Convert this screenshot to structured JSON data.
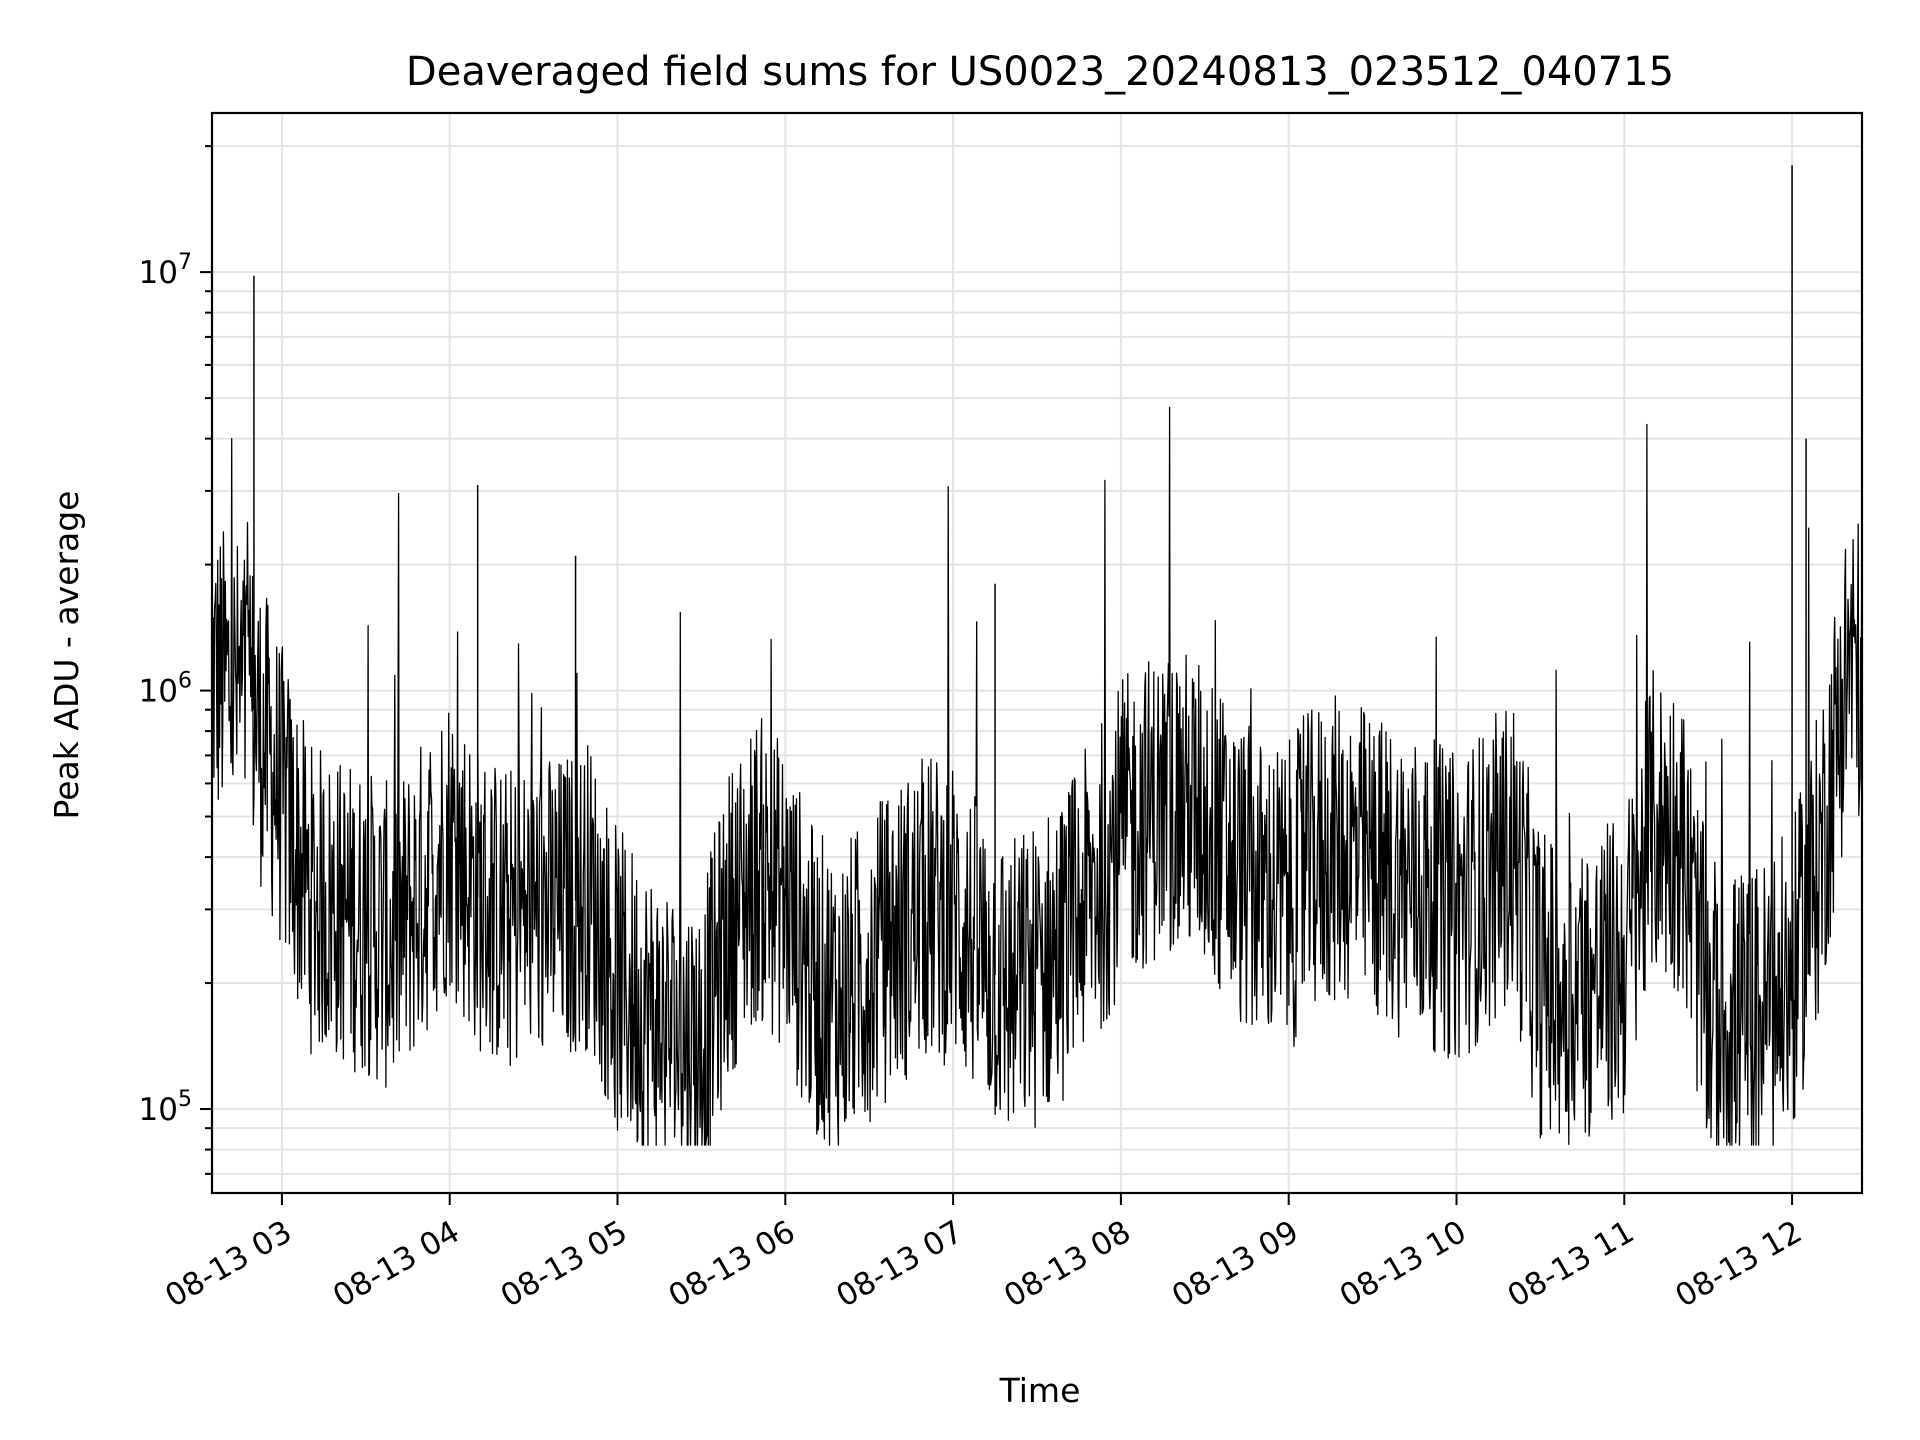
{
  "chart_data": {
    "type": "line",
    "title": "Deaveraged field sums for US0023_20240813_023512_040715",
    "xlabel": "Time",
    "ylabel": "Peak ADU - average",
    "yscale": "log",
    "ylim": [
      63000,
      24000000
    ],
    "xlim": [
      "2024-08-13 02:35",
      "2024-08-13 12:25"
    ],
    "grid": true,
    "line_color": "#000000",
    "x_ticks": [
      "08-13 03",
      "08-13 04",
      "08-13 05",
      "08-13 06",
      "08-13 07",
      "08-13 08",
      "08-13 09",
      "08-13 10",
      "08-13 11",
      "08-13 12"
    ],
    "y_ticks": [
      {
        "value": 100000,
        "base": "10",
        "exp": "5"
      },
      {
        "value": 1000000,
        "base": "10",
        "exp": "6"
      },
      {
        "value": 10000000,
        "base": "10",
        "exp": "7"
      }
    ],
    "series": [
      {
        "x": [
          "2024-08-13 02:35",
          "2024-08-13 02:45",
          "2024-08-13 02:50",
          "2024-08-13 03:00",
          "2024-08-13 03:10",
          "2024-08-13 03:20",
          "2024-08-13 03:30",
          "2024-08-13 03:40",
          "2024-08-13 03:50",
          "2024-08-13 04:00",
          "2024-08-13 04:10",
          "2024-08-13 04:20",
          "2024-08-13 04:30",
          "2024-08-13 04:40",
          "2024-08-13 04:50",
          "2024-08-13 05:00",
          "2024-08-13 05:10",
          "2024-08-13 05:20",
          "2024-08-13 05:30",
          "2024-08-13 05:40",
          "2024-08-13 05:50",
          "2024-08-13 06:00",
          "2024-08-13 06:10",
          "2024-08-13 06:20",
          "2024-08-13 06:30",
          "2024-08-13 06:40",
          "2024-08-13 06:50",
          "2024-08-13 07:00",
          "2024-08-13 07:10",
          "2024-08-13 07:20",
          "2024-08-13 07:30",
          "2024-08-13 07:40",
          "2024-08-13 07:50",
          "2024-08-13 08:00",
          "2024-08-13 08:10",
          "2024-08-13 08:20",
          "2024-08-13 08:30",
          "2024-08-13 08:40",
          "2024-08-13 08:50",
          "2024-08-13 09:00",
          "2024-08-13 09:10",
          "2024-08-13 09:20",
          "2024-08-13 09:30",
          "2024-08-13 09:40",
          "2024-08-13 09:50",
          "2024-08-13 10:00",
          "2024-08-13 10:10",
          "2024-08-13 10:20",
          "2024-08-13 10:30",
          "2024-08-13 10:40",
          "2024-08-13 10:50",
          "2024-08-13 11:00",
          "2024-08-13 11:10",
          "2024-08-13 11:20",
          "2024-08-13 11:30",
          "2024-08-13 11:40",
          "2024-08-13 11:50",
          "2024-08-13 12:00",
          "2024-08-13 12:10",
          "2024-08-13 12:20",
          "2024-08-13 12:25"
        ],
        "y": [
          1100000,
          1000000,
          900000,
          550000,
          320000,
          300000,
          280000,
          250000,
          330000,
          450000,
          320000,
          280000,
          300000,
          300000,
          330000,
          200000,
          170000,
          150000,
          140000,
          280000,
          380000,
          320000,
          200000,
          180000,
          220000,
          260000,
          300000,
          300000,
          230000,
          190000,
          210000,
          250000,
          330000,
          450000,
          520000,
          550000,
          500000,
          380000,
          330000,
          320000,
          400000,
          420000,
          380000,
          350000,
          330000,
          300000,
          350000,
          420000,
          200000,
          190000,
          200000,
          220000,
          480000,
          450000,
          170000,
          160000,
          170000,
          200000,
          400000,
          1200000,
          1100000
        ]
      }
    ]
  }
}
